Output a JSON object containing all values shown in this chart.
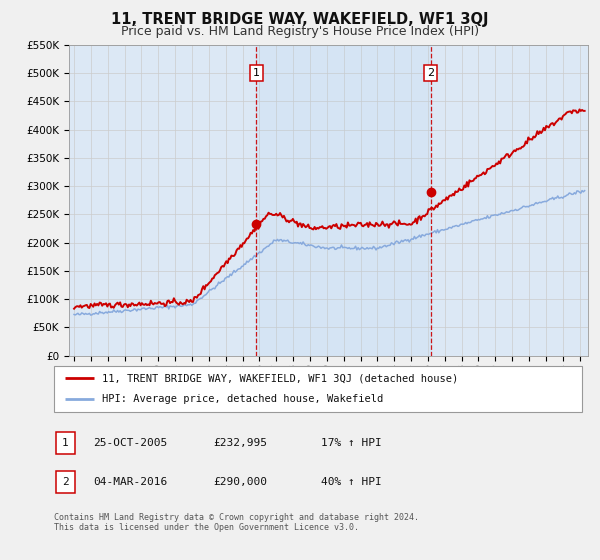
{
  "title": "11, TRENT BRIDGE WAY, WAKEFIELD, WF1 3QJ",
  "subtitle": "Price paid vs. HM Land Registry's House Price Index (HPI)",
  "ylim": [
    0,
    550000
  ],
  "xlim_start": 1994.7,
  "xlim_end": 2025.5,
  "yticks": [
    0,
    50000,
    100000,
    150000,
    200000,
    250000,
    300000,
    350000,
    400000,
    450000,
    500000,
    550000
  ],
  "ytick_labels": [
    "£0",
    "£50K",
    "£100K",
    "£150K",
    "£200K",
    "£250K",
    "£300K",
    "£350K",
    "£400K",
    "£450K",
    "£500K",
    "£550K"
  ],
  "xticks": [
    1995,
    1996,
    1997,
    1998,
    1999,
    2000,
    2001,
    2002,
    2003,
    2004,
    2005,
    2006,
    2007,
    2008,
    2009,
    2010,
    2011,
    2012,
    2013,
    2014,
    2015,
    2016,
    2017,
    2018,
    2019,
    2020,
    2021,
    2022,
    2023,
    2024,
    2025
  ],
  "grid_color": "#cccccc",
  "fig_bg_color": "#f0f0f0",
  "plot_bg_color": "#dce8f5",
  "red_line_color": "#cc0000",
  "blue_line_color": "#88aadd",
  "vline1_x": 2005.82,
  "vline2_x": 2016.17,
  "point1_x": 2005.82,
  "point1_y": 232995,
  "point2_x": 2016.17,
  "point2_y": 290000,
  "legend_red_label": "11, TRENT BRIDGE WAY, WAKEFIELD, WF1 3QJ (detached house)",
  "legend_blue_label": "HPI: Average price, detached house, Wakefield",
  "annotation1_num": "1",
  "annotation2_num": "2",
  "table_row1": [
    "1",
    "25-OCT-2005",
    "£232,995",
    "17% ↑ HPI"
  ],
  "table_row2": [
    "2",
    "04-MAR-2016",
    "£290,000",
    "40% ↑ HPI"
  ],
  "footer1": "Contains HM Land Registry data © Crown copyright and database right 2024.",
  "footer2": "This data is licensed under the Open Government Licence v3.0.",
  "title_fontsize": 10.5,
  "subtitle_fontsize": 9
}
